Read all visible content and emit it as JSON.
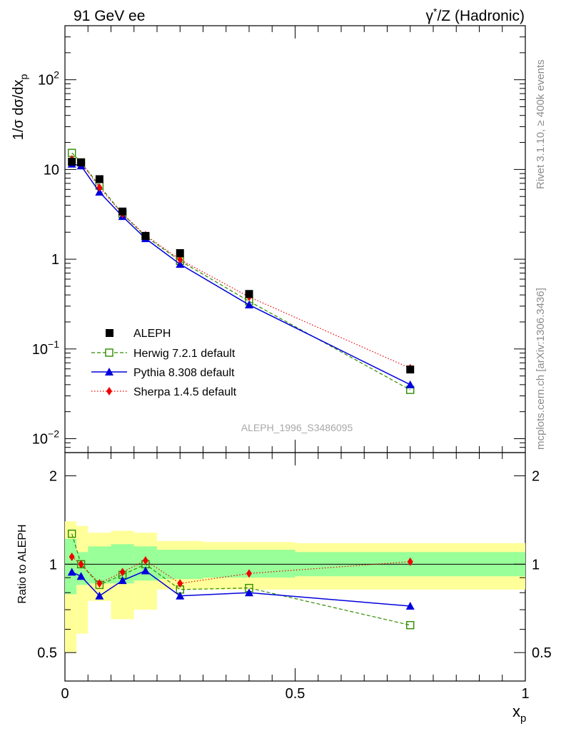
{
  "header": {
    "left_title": "91 GeV ee",
    "right_title_gamma": "γ",
    "right_title_star": "*",
    "right_title_rest": "/Z (Hadronic)"
  },
  "side_text": {
    "top": "Rivet 3.1.10, ≥ 400k events",
    "bottom": "mcplots.cern.ch [arXiv:1306.3436]"
  },
  "watermark": "ALEPH_1996_S3486095",
  "colors": {
    "data": "#000000",
    "herwig": "#2e8b00",
    "pythia": "#0000dd",
    "sherpa": "#ee0000",
    "band_inner": "#99ff99",
    "band_outer": "#ffff99"
  },
  "chart_data": [
    {
      "type": "line",
      "panel": "main",
      "yscale": "log",
      "ylabel_main": "1/σ dσ/dx",
      "ylabel_sub": "p",
      "xlim": [
        0,
        1
      ],
      "ylim": [
        0.007,
        400
      ],
      "yticks": [
        {
          "value": 0.01,
          "base": "10",
          "exp": "−2"
        },
        {
          "value": 0.1,
          "base": "10",
          "exp": "−1"
        },
        {
          "value": 1,
          "base": "1",
          "exp": ""
        },
        {
          "value": 10,
          "base": "10",
          "exp": ""
        },
        {
          "value": 100,
          "base": "10",
          "exp": "2"
        }
      ],
      "x": [
        0.015,
        0.035,
        0.075,
        0.125,
        0.175,
        0.25,
        0.4,
        0.75
      ],
      "series": [
        {
          "name": "ALEPH",
          "key": "data",
          "values": [
            12.2,
            12.0,
            7.8,
            3.4,
            1.82,
            1.17,
            0.41,
            0.059
          ]
        },
        {
          "name": "Herwig 7.2.1 default",
          "key": "herwig",
          "values": [
            15.3,
            12.0,
            6.6,
            3.2,
            1.8,
            0.96,
            0.34,
            0.035
          ]
        },
        {
          "name": "Pythia 8.308 default",
          "key": "pythia",
          "values": [
            11.5,
            11.0,
            5.6,
            3.0,
            1.7,
            0.88,
            0.31,
            0.04
          ]
        },
        {
          "name": "Sherpa 1.4.5 default",
          "key": "sherpa",
          "values": [
            13.0,
            12.0,
            6.3,
            3.2,
            1.85,
            0.99,
            0.38,
            0.061
          ]
        }
      ]
    },
    {
      "type": "line",
      "panel": "ratio",
      "yscale": "log",
      "ylabel": "Ratio to ALEPH",
      "xlabel_main": "x",
      "xlabel_sub": "p",
      "xlim": [
        0,
        1
      ],
      "ylim": [
        0.4,
        2.4
      ],
      "yticks": [
        {
          "value": 0.5,
          "label": "0.5"
        },
        {
          "value": 1,
          "label": "1"
        },
        {
          "value": 2,
          "label": "2"
        }
      ],
      "xticks": [
        {
          "value": 0,
          "label": "0"
        },
        {
          "value": 0.5,
          "label": "0.5"
        },
        {
          "value": 1,
          "label": "1"
        }
      ],
      "x": [
        0.015,
        0.035,
        0.075,
        0.125,
        0.175,
        0.25,
        0.4,
        0.75
      ],
      "series": [
        {
          "name": "Herwig 7.2.1 default",
          "key": "herwig",
          "values": [
            1.27,
            1.0,
            0.85,
            0.92,
            1.0,
            0.82,
            0.83,
            0.62
          ]
        },
        {
          "name": "Pythia 8.308 default",
          "key": "pythia",
          "values": [
            0.94,
            0.91,
            0.78,
            0.88,
            0.95,
            0.78,
            0.8,
            0.72
          ]
        },
        {
          "name": "Sherpa 1.4.5 default",
          "key": "sherpa",
          "values": [
            1.06,
            1.0,
            0.86,
            0.94,
            1.03,
            0.86,
            0.93,
            1.02
          ]
        }
      ],
      "bands": [
        {
          "x0": 0.0,
          "x1": 0.025,
          "inner": [
            0.79,
            1.22
          ],
          "outer": [
            0.5,
            1.4
          ]
        },
        {
          "x0": 0.025,
          "x1": 0.05,
          "inner": [
            0.85,
            1.1
          ],
          "outer": [
            0.58,
            1.35
          ]
        },
        {
          "x0": 0.05,
          "x1": 0.1,
          "inner": [
            0.86,
            1.15
          ],
          "outer": [
            0.75,
            1.28
          ]
        },
        {
          "x0": 0.1,
          "x1": 0.15,
          "inner": [
            0.86,
            1.17
          ],
          "outer": [
            0.65,
            1.3
          ]
        },
        {
          "x0": 0.15,
          "x1": 0.2,
          "inner": [
            0.88,
            1.15
          ],
          "outer": [
            0.7,
            1.28
          ]
        },
        {
          "x0": 0.2,
          "x1": 0.3,
          "inner": [
            0.89,
            1.12
          ],
          "outer": [
            0.82,
            1.2
          ]
        },
        {
          "x0": 0.3,
          "x1": 0.5,
          "inner": [
            0.9,
            1.12
          ],
          "outer": [
            0.82,
            1.19
          ]
        },
        {
          "x0": 0.5,
          "x1": 1.0,
          "inner": [
            0.91,
            1.1
          ],
          "outer": [
            0.82,
            1.18
          ]
        }
      ]
    }
  ]
}
